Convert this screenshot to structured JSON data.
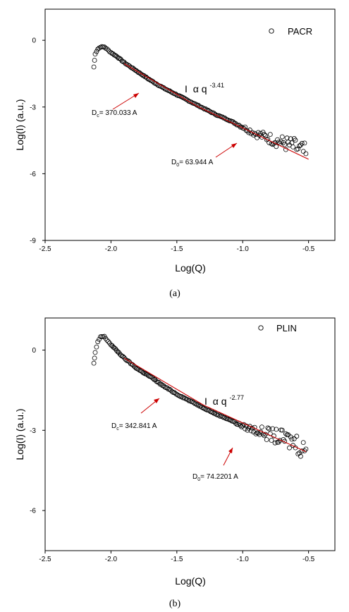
{
  "chart_data": [
    {
      "type": "scatter",
      "caption": "(a)",
      "xlabel": "Log(Q)",
      "ylabel": "Log(I) (a.u.)",
      "xlim": [
        -2.5,
        -0.3
      ],
      "ylim": [
        -9,
        1.4
      ],
      "xticks": [
        "-2.5",
        "-2.0",
        "-1.5",
        "-1.0",
        "-0.5"
      ],
      "yticks": [
        "0",
        "-3",
        "-6",
        "-9"
      ],
      "legend": "PACR",
      "power_law": {
        "prefix": "I",
        "alpha": "α",
        "base": "q",
        "exponent": "-3.41"
      },
      "annotations": [
        {
          "label": "D",
          "sub": "c",
          "value": "= 370.033 A"
        },
        {
          "label": "D",
          "sub": "0",
          "value": "= 63.944 A"
        }
      ],
      "series": [
        {
          "marker": "open-circle",
          "x": [
            -2.13,
            -2.12,
            -2.1,
            -2.08,
            -2.05,
            -2.0,
            -1.95,
            -1.9,
            -1.85,
            -1.8,
            -1.75,
            -1.7,
            -1.6,
            -1.5,
            -1.4,
            -1.3,
            -1.2,
            -1.1,
            -1.0,
            -0.9,
            -0.8,
            -0.7,
            -0.6,
            -0.55,
            -0.52
          ],
          "y": [
            -1.2,
            -0.6,
            -0.4,
            -0.3,
            -0.3,
            -0.55,
            -0.75,
            -1.0,
            -1.2,
            -1.4,
            -1.6,
            -1.8,
            -2.15,
            -2.45,
            -2.75,
            -3.05,
            -3.35,
            -3.6,
            -3.9,
            -4.2,
            -4.4,
            -4.6,
            -4.8,
            -5.0,
            -5.1
          ]
        }
      ],
      "fit_lines": [
        {
          "color": "#cc0000",
          "x": [
            -1.9,
            -1.35
          ],
          "y": [
            -1.05,
            -2.95
          ]
        },
        {
          "color": "#cc0000",
          "x": [
            -1.35,
            -0.5
          ],
          "y": [
            -2.95,
            -5.35
          ]
        }
      ]
    },
    {
      "type": "scatter",
      "caption": "(b)",
      "xlabel": "Log(Q)",
      "ylabel": "Log(I) (a.u.)",
      "xlim": [
        -2.5,
        -0.3
      ],
      "ylim": [
        -7.5,
        1.2
      ],
      "xticks": [
        "-2.5",
        "-2.0",
        "-1.5",
        "-1.0",
        "-0.5"
      ],
      "yticks": [
        "0",
        "-3",
        "-6"
      ],
      "legend": "PLIN",
      "power_law": {
        "prefix": "I",
        "alpha": "α",
        "base": "q",
        "exponent": "-2.77"
      },
      "annotations": [
        {
          "label": "D",
          "sub": "c",
          "value": "= 342.841 A"
        },
        {
          "label": "D",
          "sub": "0",
          "value": "= 74.2201 A"
        }
      ],
      "series": [
        {
          "marker": "open-circle",
          "x": [
            -2.13,
            -2.12,
            -2.1,
            -2.08,
            -2.05,
            -2.0,
            -1.95,
            -1.9,
            -1.85,
            -1.8,
            -1.75,
            -1.7,
            -1.6,
            -1.5,
            -1.4,
            -1.3,
            -1.2,
            -1.1,
            -1.0,
            -0.9,
            -0.8,
            -0.7,
            -0.6,
            -0.55,
            -0.52
          ],
          "y": [
            -0.5,
            -0.1,
            0.3,
            0.5,
            0.5,
            0.2,
            -0.05,
            -0.3,
            -0.5,
            -0.7,
            -0.85,
            -1.0,
            -1.35,
            -1.65,
            -1.9,
            -2.15,
            -2.4,
            -2.6,
            -2.85,
            -3.0,
            -3.15,
            -3.3,
            -3.45,
            -3.6,
            -3.7
          ]
        }
      ],
      "fit_lines": [
        {
          "color": "#cc0000",
          "x": [
            -1.9,
            -1.3
          ],
          "y": [
            -0.3,
            -2.05
          ]
        },
        {
          "color": "#cc0000",
          "x": [
            -1.3,
            -0.52
          ],
          "y": [
            -2.05,
            -3.8
          ]
        }
      ]
    }
  ]
}
